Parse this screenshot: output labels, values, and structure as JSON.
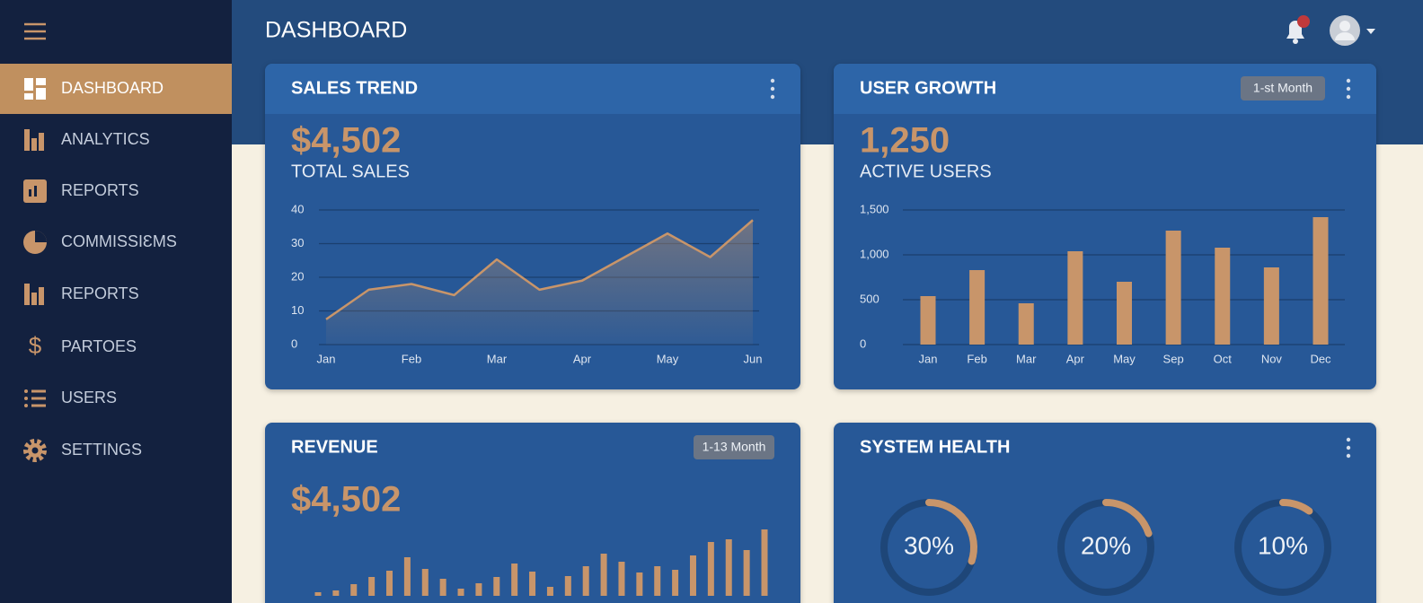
{
  "header": {
    "title": "DASHBOARD"
  },
  "sidebar": {
    "items": [
      "DASHBOARD",
      "ANALYTICS",
      "REPORTS",
      "COMMISSIƐMS",
      "REPORTS",
      "PARTOES",
      "USERS",
      "SETTINGS"
    ]
  },
  "chart_data": [
    {
      "type": "line",
      "title": "SALES TREND",
      "value_text": "$4,502",
      "value_caption": "TOTAL SALES",
      "categories": [
        "Jan",
        null,
        "Feb",
        null,
        "Mar",
        null,
        "Apr",
        null,
        "May",
        null,
        "Jun"
      ],
      "values": [
        7.5,
        16.3,
        18,
        14.7,
        25.3,
        16.3,
        19,
        26,
        33,
        26,
        37
      ],
      "color": "#c8956a",
      "ylim": [
        0,
        40
      ],
      "yticks": [
        0,
        10,
        20,
        30,
        40
      ],
      "grid": true
    },
    {
      "type": "bar",
      "title": "USER GROWTH",
      "badge": "1-st Month",
      "value_text": "1,250",
      "value_caption": "ACTIVE USERS",
      "categories": [
        "Jan",
        "Feb",
        "Mar",
        "Apr",
        "May",
        "Sep",
        "Oct",
        "Nov",
        "Dec"
      ],
      "values": [
        540,
        830,
        460,
        1040,
        700,
        1270,
        1080,
        860,
        1420
      ],
      "color": "#c8956a",
      "ylim": [
        0,
        1500
      ],
      "yticks": [
        0,
        500,
        {
          "value": 1000,
          "label": "1,000"
        },
        {
          "value": 1500,
          "label": "1,500"
        }
      ],
      "grid": true
    },
    {
      "type": "bar",
      "title": "REVENUE",
      "badge": "1-13 Month",
      "value_text": "$4,502",
      "values": [
        4,
        6,
        13,
        21,
        28,
        43,
        30,
        19,
        8,
        14,
        21,
        36,
        27,
        10,
        22,
        33,
        47,
        38,
        26,
        33,
        29,
        45,
        60,
        63,
        51,
        74
      ],
      "color": "#c8956a",
      "ylim": [
        0,
        80
      ]
    },
    {
      "type": "gauge",
      "title": "SYSTEM HEALTH",
      "values": [
        30,
        20,
        10
      ],
      "value_labels": [
        "30%",
        "20%",
        "10%"
      ],
      "color": "#c8956a"
    }
  ]
}
